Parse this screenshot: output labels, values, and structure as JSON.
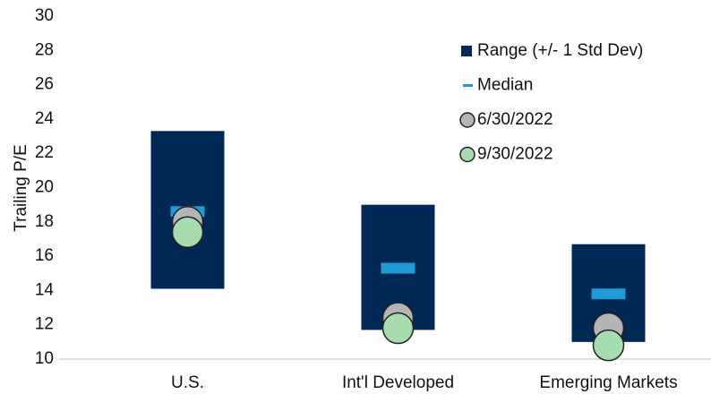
{
  "chart_data": {
    "type": "range",
    "y_label": "Trailing P/E",
    "categories": [
      "U.S.",
      "Int'l Developed",
      "Emerging Markets"
    ],
    "ranges": {
      "name": "Range (+/- 1 Std Dev)",
      "color": "#002855",
      "low": [
        14.1,
        11.7,
        11.0
      ],
      "high": [
        23.3,
        19.0,
        16.7
      ]
    },
    "series": [
      {
        "name": "Median",
        "color": "#1e9ad6",
        "marker": "dash",
        "values": [
          18.6,
          15.3,
          13.8
        ]
      },
      {
        "name": "6/30/2022",
        "color": "#b5b5b5",
        "marker": "circle",
        "values": [
          18.0,
          12.4,
          11.8
        ]
      },
      {
        "name": "9/30/2022",
        "color": "#a6dcb0",
        "marker": "circle",
        "values": [
          17.4,
          11.8,
          10.8
        ]
      }
    ],
    "ylim": [
      10,
      30
    ],
    "yticks": [
      10,
      12,
      14,
      16,
      18,
      20,
      22,
      24,
      26,
      28,
      30
    ],
    "legend": "top-right"
  }
}
